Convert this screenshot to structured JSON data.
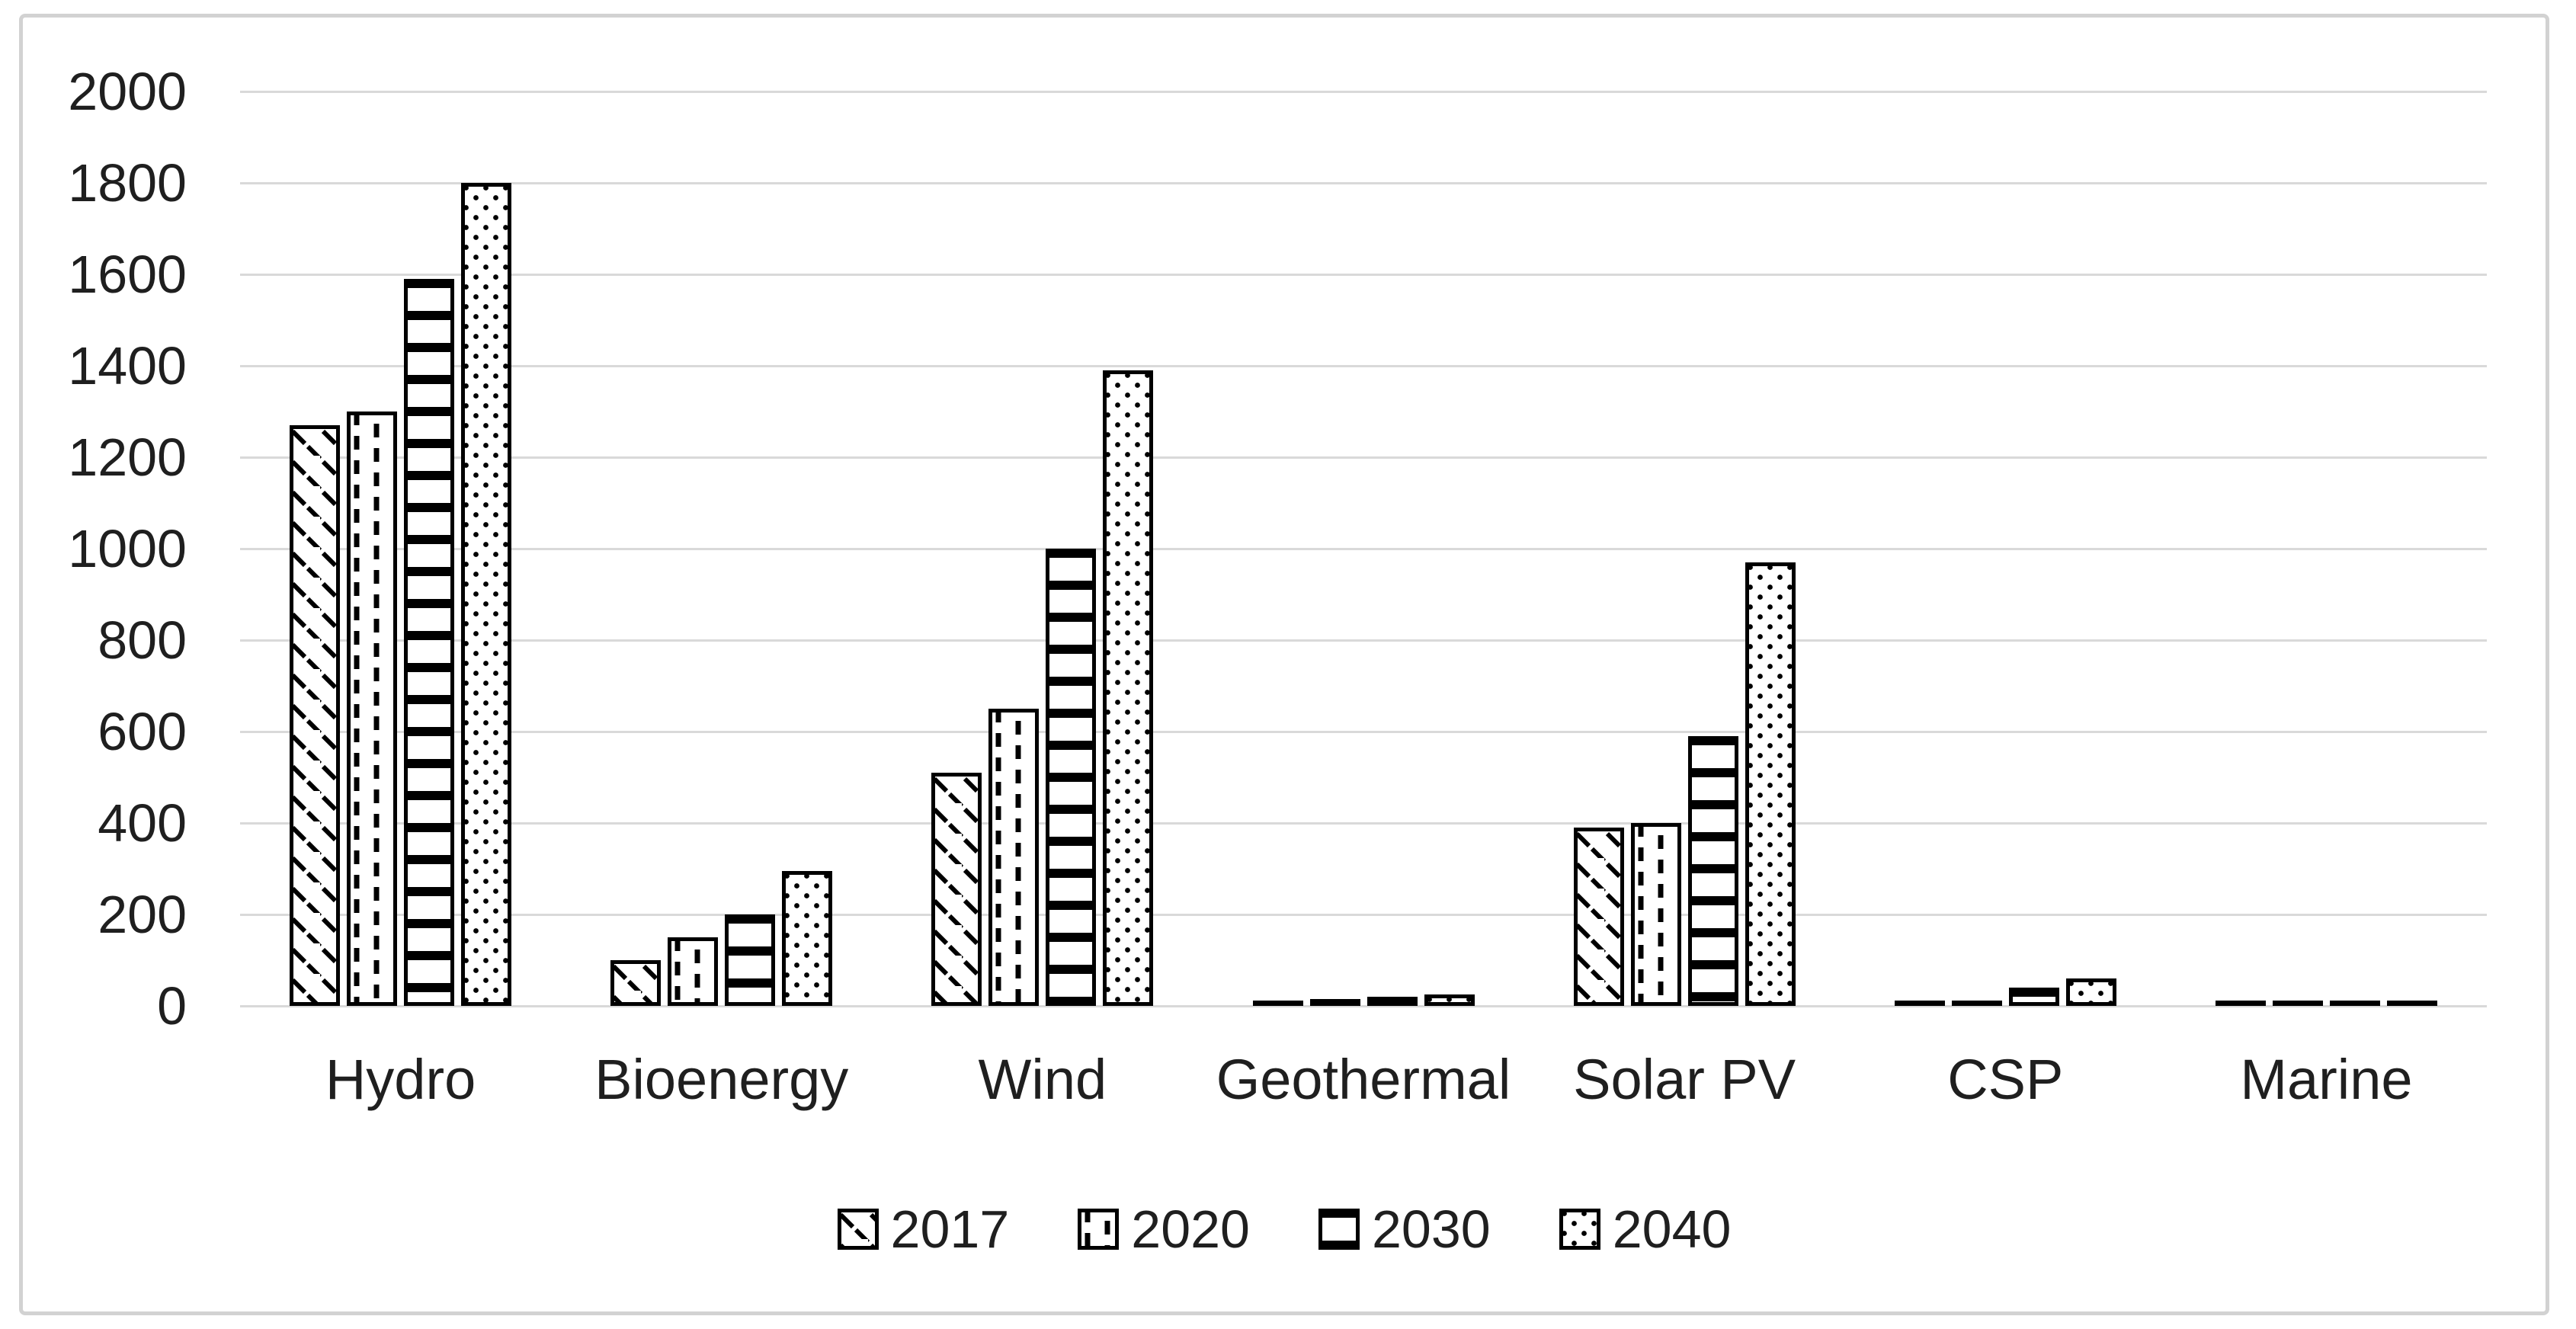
{
  "window": {
    "background": "#ffffff"
  },
  "chart_data": {
    "type": "bar",
    "title": "",
    "xlabel": "",
    "ylabel": "",
    "categories": [
      "Hydro",
      "Bioenergy",
      "Wind",
      "Geothermal",
      "Solar PV",
      "CSP",
      "Marine"
    ],
    "series": [
      {
        "name": "2017",
        "pattern": "diagonal-dashes",
        "values": [
          1270,
          100,
          510,
          10,
          390,
          10,
          10
        ]
      },
      {
        "name": "2020",
        "pattern": "vertical-dashes",
        "values": [
          1300,
          150,
          650,
          15,
          400,
          10,
          10
        ]
      },
      {
        "name": "2030",
        "pattern": "horizontal-stripes",
        "values": [
          1590,
          200,
          1000,
          20,
          590,
          40,
          10
        ]
      },
      {
        "name": "2040",
        "pattern": "dots",
        "values": [
          1800,
          295,
          1390,
          25,
          970,
          60,
          10
        ]
      }
    ],
    "ylim": [
      0,
      2000
    ],
    "yticks": [
      0,
      200,
      400,
      600,
      800,
      1000,
      1200,
      1400,
      1600,
      1800,
      2000
    ],
    "grid": true,
    "legend_position": "bottom",
    "bar_fill": "#ffffff",
    "bar_outline": "#000000"
  },
  "legend": {
    "items": [
      "2017",
      "2020",
      "2030",
      "2040"
    ]
  },
  "colors": {
    "gridline": "#d9d9d9",
    "frame_border": "#d2d2d2",
    "text": "#1f1f1f",
    "background": "#ffffff",
    "bar_outline": "#000000"
  }
}
